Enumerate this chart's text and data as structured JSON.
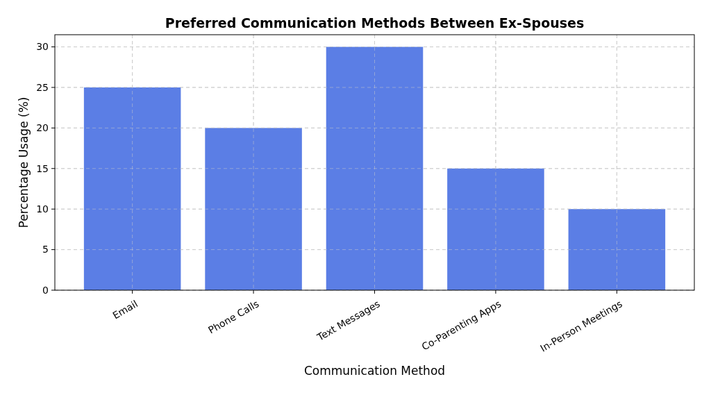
{
  "chart_data": {
    "type": "bar",
    "title": "Preferred Communication Methods Between Ex-Spouses",
    "xlabel": "Communication Method",
    "ylabel": "Percentage Usage (%)",
    "categories": [
      "Email",
      "Phone Calls",
      "Text Messages",
      "Co-Parenting Apps",
      "In-Person Meetings"
    ],
    "values": [
      25,
      20,
      30,
      15,
      10
    ],
    "color": "#5b7ee5",
    "ylim": [
      0,
      31.5
    ],
    "yticks": [
      0,
      5,
      10,
      15,
      20,
      25,
      30
    ],
    "grid": true
  }
}
